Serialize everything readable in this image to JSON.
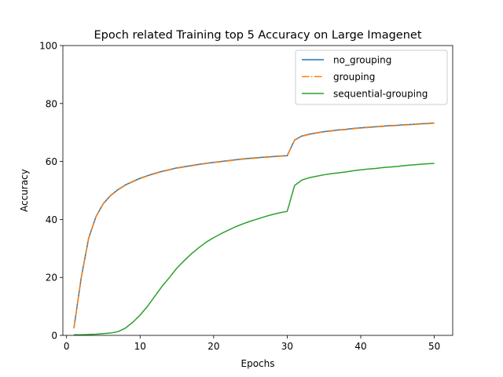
{
  "chart_data": {
    "type": "line",
    "title": "Epoch related Training top 5 Accuracy on Large Imagenet",
    "xlabel": "Epochs",
    "ylabel": "Accuracy",
    "xlim": [
      -0.5,
      52.5
    ],
    "ylim": [
      0,
      100
    ],
    "xticks": [
      0,
      10,
      20,
      30,
      40,
      50
    ],
    "yticks": [
      0,
      20,
      40,
      60,
      80,
      100
    ],
    "grid": false,
    "legend_position": "top-right",
    "x": [
      1,
      2,
      3,
      4,
      5,
      6,
      7,
      8,
      9,
      10,
      11,
      12,
      13,
      14,
      15,
      16,
      17,
      18,
      19,
      20,
      21,
      22,
      23,
      24,
      25,
      26,
      27,
      28,
      29,
      30,
      31,
      32,
      33,
      34,
      35,
      36,
      37,
      38,
      39,
      40,
      41,
      42,
      43,
      44,
      45,
      46,
      47,
      48,
      49,
      50
    ],
    "series": [
      {
        "name": "no_grouping",
        "color": "#1f77b4",
        "dash": "solid",
        "values": [
          2.5,
          20,
          33.5,
          41,
          45.5,
          48.3,
          50.3,
          51.9,
          53.1,
          54.2,
          55.1,
          55.9,
          56.6,
          57.2,
          57.8,
          58.2,
          58.6,
          59.0,
          59.4,
          59.7,
          60.0,
          60.3,
          60.6,
          60.9,
          61.1,
          61.3,
          61.5,
          61.7,
          61.9,
          62.0,
          67.4,
          68.8,
          69.4,
          69.9,
          70.3,
          70.6,
          70.9,
          71.1,
          71.4,
          71.6,
          71.8,
          72.0,
          72.2,
          72.4,
          72.5,
          72.7,
          72.8,
          73.0,
          73.1,
          73.3
        ]
      },
      {
        "name": "grouping",
        "color": "#ff7f0e",
        "dash": "dashdot",
        "values": [
          2.4,
          19.8,
          33.3,
          40.9,
          45.4,
          48.2,
          50.2,
          51.8,
          53.0,
          54.1,
          55.0,
          55.8,
          56.5,
          57.1,
          57.7,
          58.1,
          58.5,
          58.9,
          59.3,
          59.6,
          59.9,
          60.2,
          60.5,
          60.8,
          61.0,
          61.2,
          61.4,
          61.6,
          61.8,
          61.9,
          67.3,
          68.7,
          69.3,
          69.8,
          70.2,
          70.5,
          70.8,
          71.0,
          71.3,
          71.5,
          71.7,
          71.9,
          72.1,
          72.3,
          72.4,
          72.6,
          72.7,
          72.9,
          73.0,
          73.2
        ]
      },
      {
        "name": "sequential-grouping",
        "color": "#2ca02c",
        "dash": "solid",
        "values": [
          0.2,
          0.2,
          0.3,
          0.4,
          0.6,
          0.8,
          1.3,
          2.5,
          4.5,
          7.0,
          10.0,
          13.5,
          17.0,
          20.0,
          23.2,
          25.8,
          28.2,
          30.3,
          32.2,
          33.7,
          35.1,
          36.3,
          37.5,
          38.5,
          39.4,
          40.2,
          41.0,
          41.7,
          42.3,
          42.8,
          51.7,
          53.6,
          54.4,
          54.9,
          55.4,
          55.8,
          56.1,
          56.4,
          56.8,
          57.1,
          57.4,
          57.6,
          57.9,
          58.1,
          58.3,
          58.6,
          58.8,
          59.0,
          59.2,
          59.3
        ]
      }
    ]
  }
}
